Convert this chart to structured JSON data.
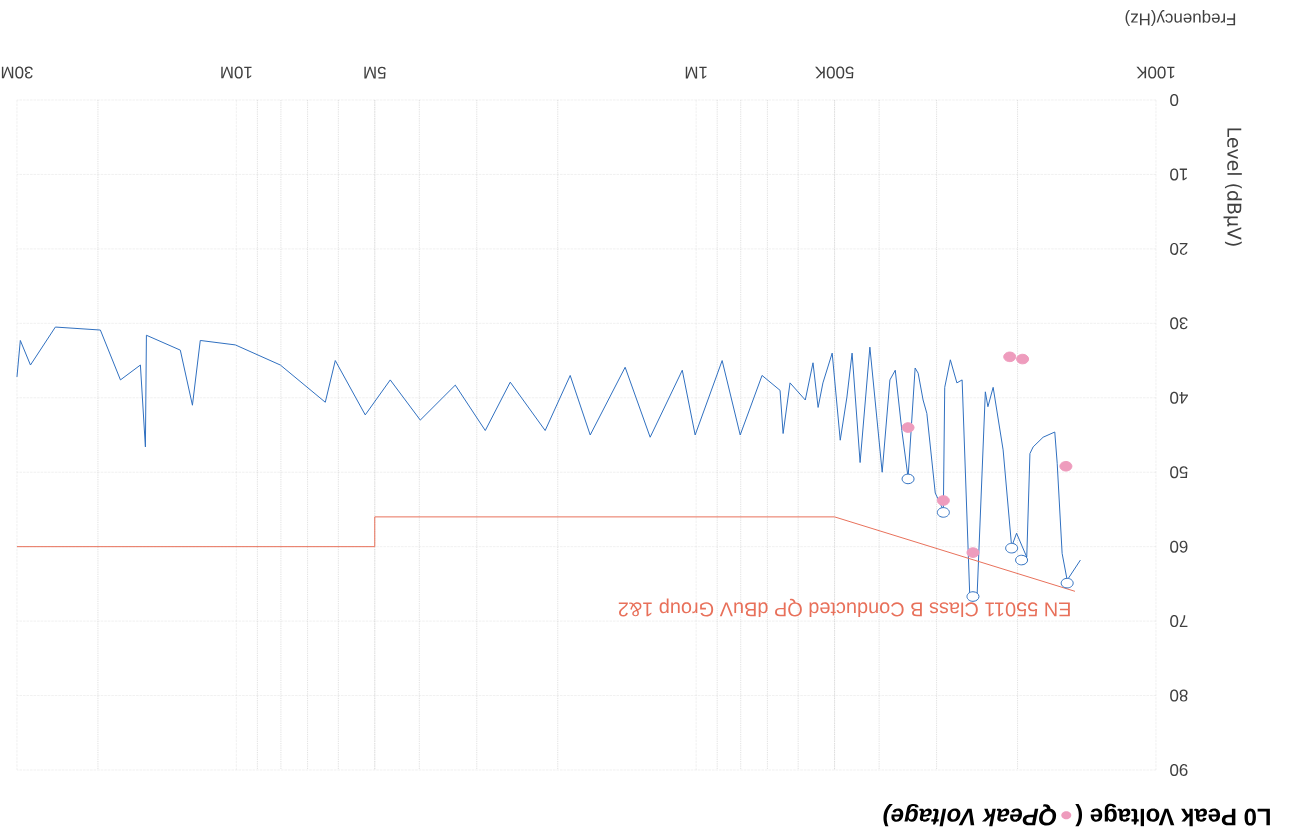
{
  "chart_data": {
    "type": "line",
    "title": "L0 Peak Voltage (",
    "xlabel": "Frequency(Hz)",
    "ylabel": "Level (dBµV)",
    "xlim": [
      30000000,
      100000
    ],
    "ylim": [
      90,
      0
    ],
    "xticks": [
      {
        "value": 100000,
        "label": "100K"
      },
      {
        "value": 500000,
        "label": "500K"
      },
      {
        "value": 1000000,
        "label": "1M"
      },
      {
        "value": 5000000,
        "label": "5M"
      },
      {
        "value": 10000000,
        "label": "10M"
      },
      {
        "value": 30000000,
        "label": "30M"
      }
    ],
    "yticks": [
      0,
      10,
      20,
      30,
      40,
      50,
      60,
      70,
      80,
      90
    ],
    "log": "x",
    "grid": true,
    "legend": "bottom right",
    "line_style": "solid",
    "series": [
      {
        "color": "#2f6fc0",
        "marker": "none",
        "x": [
          146000,
          156000,
          160000,
          164000,
          166000,
          176000,
          185000,
          188000,
          191000,
          201000,
          206000,
          215000,
          226000,
          232000,
          235000,
          245000,
          254000,
          264000,
          271000,
          280000,
          288000,
          290000,
          302000,
          315000,
          321000,
          329000,
          334000,
          346000,
          357000,
          369000,
          379000,
          394000,
          419000,
          440000,
          458000,
          470000,
          486000,
          506000,
          530000,
          543000,
          557000,
          579000,
          625000,
          647000,
          657000,
          719000,
          802000,
          878000,
          1005000,
          1072000,
          1259000,
          1427000,
          1700000,
          1879000,
          2130000,
          2537000,
          2875000,
          3341000,
          3981000,
          4627000,
          5244000,
          6093000,
          6406000,
          8022000,
          10050000,
          11980000,
          12460000,
          13240000,
          15690000,
          15770000,
          16170000,
          17870000,
          19760000,
          24750000,
          28040000,
          29500000,
          30000000
        ],
        "values": [
          61.8,
          64.5,
          60.9,
          48.8,
          44.6,
          45.3,
          46.6,
          47.5,
          61.4,
          58.2,
          60,
          47,
          38.6,
          41.2,
          39.2,
          66.8,
          66.8,
          37.6,
          38,
          34.9,
          38.6,
          55.1,
          52.8,
          42.1,
          40.3,
          36.7,
          36,
          50.7,
          44.4,
          36.3,
          37.6,
          50,
          33.2,
          48.7,
          34,
          39.9,
          45.7,
          34,
          38,
          41.3,
          35.3,
          40.3,
          38,
          44.8,
          39,
          37,
          45,
          35,
          45,
          36.3,
          45.3,
          35.9,
          45,
          37,
          44.4,
          37.9,
          44.4,
          38.3,
          43,
          37.6,
          42.3,
          35,
          40.6,
          35.6,
          32.9,
          32.3,
          41,
          33.6,
          31.6,
          46.6,
          35.6,
          37.6,
          30.9,
          30.5,
          35.6,
          32.3,
          37.2
        ]
      },
      {
        "type": "scatter",
        "name": "QPeak Voltage)",
        "color": "#ee9cbd",
        "marker": "circle",
        "x": [
          157000,
          195000,
          208000,
          250000,
          290000,
          346000
        ],
        "values": [
          49.2,
          34.8,
          34.5,
          60.8,
          53.8,
          44
        ]
      },
      {
        "type": "scatter",
        "color": "#2f6fc0",
        "marker": "circle",
        "x": [
          156000,
          196000,
          206000,
          250000,
          290000,
          346000
        ],
        "values": [
          64.9,
          61.8,
          60.2,
          66.7,
          55.4,
          50.9
        ]
      },
      {
        "name": "EN 55011 Class B Conducted QP dBuV Group 1&2",
        "color": "#e8705a",
        "marker": "none",
        "x": [
          150000,
          500000,
          5000000,
          5000000,
          30000000
        ],
        "values": [
          66,
          56,
          56,
          60,
          60
        ]
      }
    ]
  }
}
